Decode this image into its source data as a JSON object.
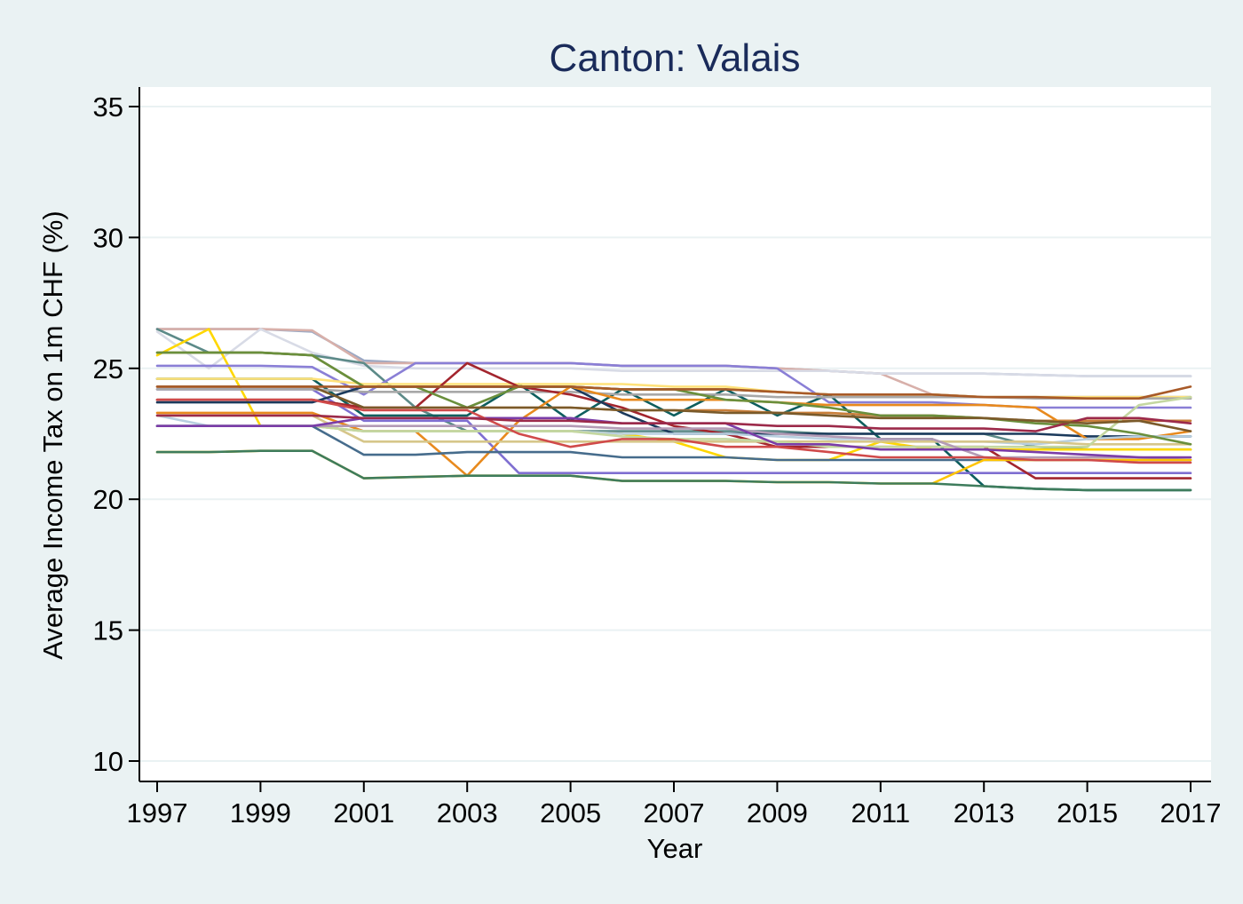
{
  "chart_data": {
    "type": "line",
    "title": "Canton: Valais",
    "xlabel": "Year",
    "ylabel": "Average Income Tax on 1m CHF (%)",
    "xlim": [
      1997,
      2017
    ],
    "ylim": [
      10,
      35
    ],
    "x_ticks": [
      "1997",
      "1999",
      "2001",
      "2003",
      "2005",
      "2007",
      "2009",
      "2011",
      "2013",
      "2015",
      "2017"
    ],
    "y_ticks": [
      "10",
      "15",
      "20",
      "25",
      "30",
      "35"
    ],
    "grid": "horizontal",
    "legend": "none",
    "x": [
      1997,
      1998,
      1999,
      2000,
      2001,
      2002,
      2003,
      2004,
      2005,
      2006,
      2007,
      2008,
      2009,
      2010,
      2011,
      2012,
      2013,
      2014,
      2015,
      2016,
      2017
    ],
    "series": [
      {
        "color": "#9aa8c4",
        "values": [
          26.5,
          26.5,
          26.5,
          26.4,
          25.3,
          25.2,
          25.2,
          25.2,
          25.2,
          25.1,
          25.1,
          25.1,
          25.0,
          24.9,
          24.8,
          24.8,
          24.8,
          24.75,
          24.7,
          24.7,
          24.7
        ]
      },
      {
        "color": "#d8b0aa",
        "values": [
          26.5,
          26.5,
          26.5,
          26.45,
          25.2,
          25.2,
          25.2,
          25.2,
          25.2,
          25.1,
          25.1,
          25.1,
          25.0,
          24.9,
          24.8,
          24.0,
          23.9,
          23.9,
          23.85,
          23.85,
          23.85
        ]
      },
      {
        "color": "#d8dbe6",
        "values": [
          26.4,
          25.0,
          26.5,
          25.6,
          25.1,
          25.0,
          25.0,
          25.0,
          25.0,
          24.9,
          24.9,
          24.9,
          24.9,
          24.9,
          24.8,
          24.8,
          24.8,
          24.75,
          24.7,
          24.7,
          24.7
        ]
      },
      {
        "color": "#5c8a88",
        "values": [
          26.5,
          25.6,
          25.6,
          25.5,
          25.2,
          23.5,
          22.6,
          22.6,
          22.6,
          22.6,
          22.6,
          22.6,
          22.6,
          22.5,
          22.5,
          22.5,
          22.5,
          22.0,
          21.9,
          21.9,
          21.9
        ]
      },
      {
        "color": "#ffd700",
        "values": [
          25.5,
          26.5,
          22.8,
          22.8,
          22.6,
          22.6,
          22.6,
          22.6,
          22.6,
          22.5,
          22.2,
          21.6,
          21.5,
          21.5,
          22.2,
          21.9,
          21.9,
          21.9,
          21.9,
          21.9,
          21.9
        ]
      },
      {
        "color": "#8c7e3a",
        "values": [
          25.6,
          25.6,
          25.6,
          25.5,
          24.3,
          24.3,
          24.3,
          24.3,
          24.3,
          24.2,
          24.2,
          24.2,
          24.1,
          24.0,
          24.0,
          24.0,
          23.9,
          23.9,
          23.9,
          23.9,
          23.9
        ]
      },
      {
        "color": "#8a7fd6",
        "values": [
          25.1,
          25.1,
          25.1,
          25.05,
          24.0,
          25.2,
          25.2,
          25.2,
          25.2,
          25.1,
          25.1,
          25.1,
          25.0,
          23.7,
          23.7,
          23.7,
          23.6,
          23.5,
          23.5,
          23.5,
          23.5
        ]
      },
      {
        "color": "#0d5e5e",
        "values": [
          24.6,
          24.6,
          24.6,
          24.6,
          23.2,
          23.2,
          23.2,
          24.4,
          23.0,
          24.2,
          23.2,
          24.2,
          23.2,
          24.0,
          22.3,
          22.3,
          20.5,
          20.4,
          20.35,
          20.35,
          20.35
        ]
      },
      {
        "color": "#ffe27a",
        "values": [
          24.6,
          24.6,
          24.6,
          24.6,
          24.4,
          24.4,
          24.4,
          24.4,
          24.4,
          24.4,
          24.3,
          24.3,
          24.1,
          24.0,
          24.0,
          24.0,
          23.9,
          23.9,
          23.9,
          23.9,
          23.9
        ]
      },
      {
        "color": "#7f6fd1",
        "values": [
          24.2,
          24.2,
          24.2,
          24.2,
          23.0,
          23.0,
          23.0,
          21.0,
          21.0,
          21.0,
          21.0,
          21.0,
          21.0,
          21.0,
          21.0,
          21.0,
          21.0,
          21.0,
          21.0,
          21.0,
          21.0
        ]
      },
      {
        "color": "#a8a8a8",
        "values": [
          24.2,
          24.2,
          24.2,
          24.2,
          24.1,
          24.1,
          24.1,
          24.1,
          24.1,
          24.0,
          24.0,
          24.0,
          23.9,
          23.9,
          23.9,
          23.9,
          23.9,
          23.85,
          23.85,
          23.85,
          23.85
        ]
      },
      {
        "color": "#c97f3a",
        "values": [
          23.8,
          23.8,
          23.8,
          23.8,
          23.5,
          23.5,
          23.5,
          23.5,
          23.5,
          23.4,
          23.4,
          23.4,
          23.3,
          23.3,
          23.2,
          23.2,
          23.1,
          23.0,
          23.0,
          23.0,
          23.0
        ]
      },
      {
        "color": "#a3252e",
        "values": [
          23.8,
          23.8,
          23.8,
          23.8,
          23.5,
          23.5,
          25.2,
          24.3,
          24.0,
          23.5,
          22.8,
          22.5,
          22.0,
          22.0,
          22.0,
          22.0,
          22.0,
          20.8,
          20.8,
          20.8,
          20.8
        ]
      },
      {
        "color": "#1b3a5c",
        "values": [
          23.7,
          23.7,
          23.7,
          23.7,
          24.3,
          24.3,
          24.3,
          24.3,
          24.3,
          23.3,
          22.5,
          22.5,
          22.5,
          22.5,
          22.5,
          22.5,
          22.5,
          22.5,
          22.4,
          22.4,
          22.4
        ]
      },
      {
        "color": "#e88a1e",
        "values": [
          23.3,
          23.3,
          23.3,
          23.3,
          22.6,
          22.6,
          20.9,
          23.0,
          24.3,
          23.8,
          23.8,
          23.8,
          23.7,
          23.6,
          23.6,
          23.6,
          23.6,
          23.5,
          22.3,
          22.3,
          22.6
        ]
      },
      {
        "color": "#b8cfe0",
        "values": [
          23.2,
          22.8,
          22.8,
          22.8,
          22.6,
          22.6,
          22.6,
          22.6,
          22.6,
          22.5,
          22.5,
          22.5,
          22.4,
          22.3,
          22.3,
          22.2,
          22.2,
          22.1,
          22.3,
          22.4,
          22.4
        ]
      },
      {
        "color": "#d6c68a",
        "values": [
          23.2,
          23.2,
          23.2,
          23.2,
          22.2,
          22.2,
          22.2,
          22.2,
          22.2,
          22.2,
          22.2,
          22.2,
          22.2,
          22.2,
          22.2,
          22.2,
          22.2,
          22.2,
          22.1,
          22.1,
          22.1
        ]
      },
      {
        "color": "#c4d7a0",
        "values": [
          22.8,
          22.8,
          22.8,
          22.8,
          22.6,
          22.6,
          22.6,
          22.6,
          22.6,
          22.4,
          22.3,
          22.3,
          22.2,
          22.0,
          22.0,
          22.0,
          22.0,
          22.0,
          22.0,
          23.6,
          23.9
        ]
      },
      {
        "color": "#b39bb5",
        "values": [
          22.8,
          22.8,
          22.8,
          22.8,
          22.8,
          22.8,
          22.8,
          22.8,
          22.8,
          22.7,
          22.7,
          22.7,
          22.5,
          22.4,
          22.3,
          22.3,
          21.6,
          21.6,
          21.6,
          21.6,
          21.5
        ]
      },
      {
        "color": "#466c8c",
        "values": [
          22.8,
          22.8,
          22.8,
          22.8,
          21.7,
          21.7,
          21.8,
          21.8,
          21.8,
          21.6,
          21.6,
          21.6,
          21.5,
          21.5,
          21.5,
          21.5,
          21.5,
          21.5,
          21.5,
          21.5,
          21.5
        ]
      },
      {
        "color": "#ffc400",
        "values": [
          21.8,
          21.8,
          21.85,
          21.85,
          20.8,
          20.85,
          20.9,
          20.9,
          20.9,
          20.7,
          20.7,
          20.7,
          20.65,
          20.65,
          20.6,
          20.6,
          21.5,
          21.5,
          21.5,
          21.5,
          21.5
        ]
      },
      {
        "color": "#3e7c5c",
        "values": [
          21.8,
          21.8,
          21.85,
          21.85,
          20.8,
          20.85,
          20.9,
          20.9,
          20.9,
          20.7,
          20.7,
          20.7,
          20.65,
          20.65,
          20.6,
          20.6,
          20.5,
          20.4,
          20.35,
          20.35,
          20.35
        ]
      },
      {
        "color": "#7b3da8",
        "values": [
          22.8,
          22.8,
          22.8,
          22.8,
          23.1,
          23.1,
          23.1,
          23.1,
          23.1,
          22.9,
          22.9,
          22.9,
          22.1,
          22.1,
          21.9,
          21.9,
          21.9,
          21.8,
          21.7,
          21.6,
          21.6
        ]
      },
      {
        "color": "#d04a4a",
        "values": [
          23.8,
          23.8,
          23.8,
          23.8,
          23.4,
          23.4,
          23.4,
          22.5,
          22.0,
          22.3,
          22.3,
          22.0,
          22.0,
          21.8,
          21.6,
          21.6,
          21.6,
          21.5,
          21.5,
          21.4,
          21.4
        ]
      },
      {
        "color": "#6a8f3c",
        "values": [
          25.6,
          25.6,
          25.6,
          25.5,
          24.3,
          24.3,
          23.5,
          24.3,
          24.3,
          24.2,
          24.2,
          23.8,
          23.7,
          23.5,
          23.2,
          23.2,
          23.1,
          22.9,
          22.8,
          22.5,
          22.1
        ]
      },
      {
        "color": "#9c2a4a",
        "values": [
          23.2,
          23.2,
          23.2,
          23.2,
          23.1,
          23.1,
          23.1,
          23.0,
          23.0,
          22.9,
          22.9,
          22.9,
          22.8,
          22.8,
          22.7,
          22.7,
          22.7,
          22.6,
          23.1,
          23.1,
          22.9
        ]
      },
      {
        "color": "#7a5a2a",
        "values": [
          24.3,
          24.3,
          24.3,
          24.3,
          23.5,
          23.5,
          23.5,
          23.5,
          23.5,
          23.4,
          23.4,
          23.3,
          23.3,
          23.2,
          23.1,
          23.1,
          23.1,
          23.0,
          22.9,
          23.0,
          22.6
        ]
      },
      {
        "color": "#a85a28",
        "values": [
          24.3,
          24.3,
          24.3,
          24.3,
          24.3,
          24.3,
          24.3,
          24.3,
          24.3,
          24.2,
          24.2,
          24.2,
          24.1,
          24.0,
          24.0,
          24.0,
          23.9,
          23.9,
          23.85,
          23.85,
          24.3
        ]
      }
    ]
  }
}
